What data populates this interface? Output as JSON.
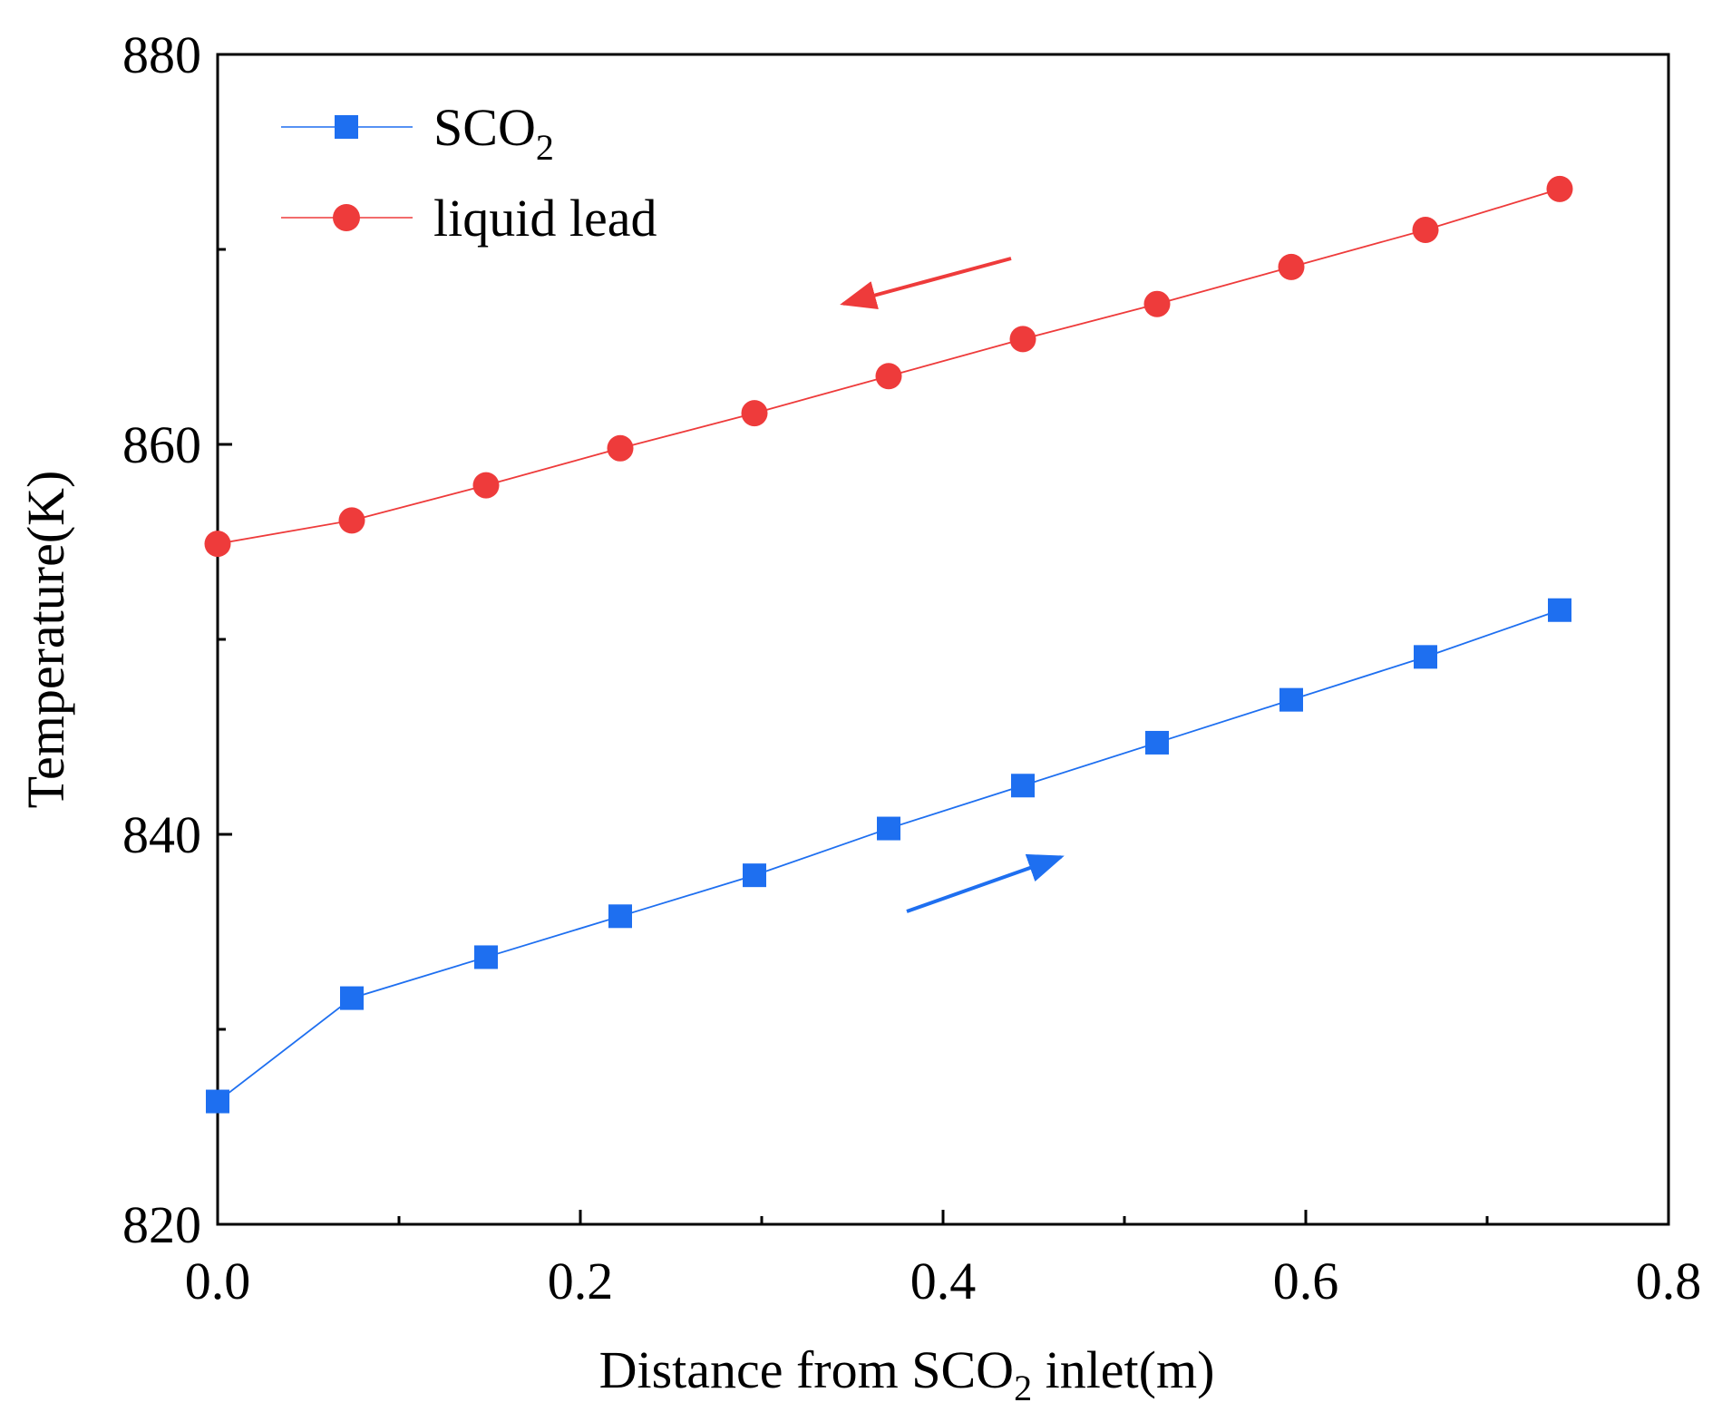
{
  "chart_data": {
    "type": "line",
    "xlabel": "Distance from SCO",
    "xlabel_sub": "2",
    "xlabel_suffix": " inlet(m)",
    "ylabel": "Temperature(K)",
    "xlim": [
      0.0,
      0.8
    ],
    "ylim": [
      820,
      880
    ],
    "x_major_ticks": [
      0.0,
      0.2,
      0.4,
      0.6,
      0.8
    ],
    "x_minor_ticks": [
      0.1,
      0.3,
      0.5,
      0.7
    ],
    "x_tick_labels": [
      "0.0",
      "0.2",
      "0.4",
      "0.6",
      "0.8"
    ],
    "y_major_ticks": [
      820,
      840,
      860,
      880
    ],
    "y_minor_ticks": [
      830,
      850,
      870
    ],
    "y_tick_labels": [
      "820",
      "840",
      "860",
      "880"
    ],
    "grid": false,
    "legend_position": "top-left",
    "series": [
      {
        "name": "SCO",
        "name_sub": "2",
        "color": "#1E6FF0",
        "marker": "square",
        "x": [
          0.0,
          0.074,
          0.148,
          0.222,
          0.296,
          0.37,
          0.444,
          0.518,
          0.592,
          0.666,
          0.74
        ],
        "y": [
          826.3,
          831.6,
          833.7,
          835.8,
          837.9,
          840.3,
          842.5,
          844.7,
          846.9,
          849.1,
          851.5
        ]
      },
      {
        "name": "liquid lead",
        "name_sub": "",
        "color": "#EE3B3B",
        "marker": "circle",
        "x": [
          0.0,
          0.074,
          0.148,
          0.222,
          0.296,
          0.37,
          0.444,
          0.518,
          0.592,
          0.666,
          0.74
        ],
        "y": [
          854.9,
          856.1,
          857.9,
          859.8,
          861.6,
          863.5,
          865.4,
          867.2,
          869.1,
          871.0,
          873.1
        ]
      }
    ],
    "annotations": [
      {
        "type": "arrow",
        "direction": "left",
        "color": "#EE3B3B",
        "meaning": "liquid lead flow direction"
      },
      {
        "type": "arrow",
        "direction": "right",
        "color": "#1E6FF0",
        "meaning": "SCO2 flow direction"
      }
    ]
  }
}
